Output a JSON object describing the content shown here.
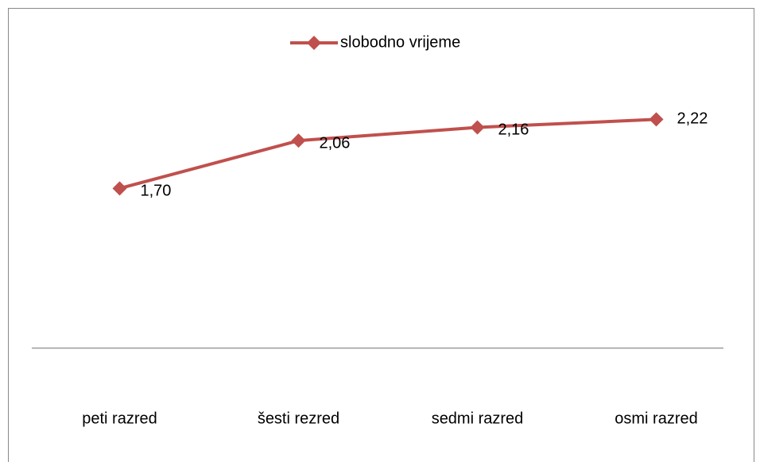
{
  "chart_data": {
    "type": "line",
    "categories": [
      "peti razred",
      "šesti rezred",
      "sedmi razred",
      "osmi razred"
    ],
    "series": [
      {
        "name": "slobodno vrijeme",
        "color": "#c0504d",
        "values": [
          1.7,
          2.06,
          2.16,
          2.22
        ],
        "value_labels": [
          "1,70",
          "2,06",
          "2,16",
          "2,22"
        ]
      }
    ],
    "ylim": [
      0.5,
      3
    ],
    "legend": "top"
  }
}
